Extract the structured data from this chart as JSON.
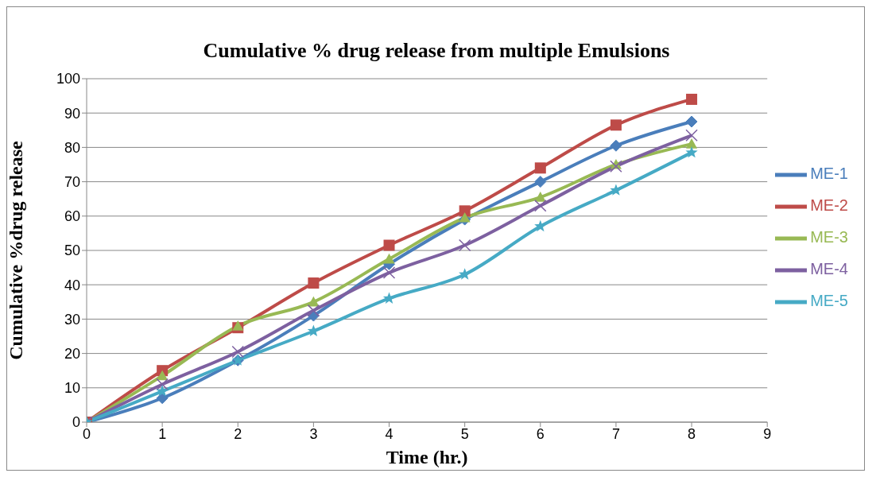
{
  "chart_data": {
    "type": "line",
    "title": "Cumulative % drug release from multiple Emulsions",
    "xlabel": "Time (hr.)",
    "ylabel": "Cumulative %drug release",
    "x": [
      0,
      1,
      2,
      3,
      4,
      5,
      6,
      7,
      8
    ],
    "series": [
      {
        "name": "ME-1",
        "color": "#4a7ebb",
        "marker": "diamond",
        "values": [
          0,
          7,
          18,
          31,
          46,
          59,
          70,
          80.5,
          87.5
        ]
      },
      {
        "name": "ME-2",
        "color": "#be4b48",
        "marker": "square",
        "values": [
          0,
          15,
          27.5,
          40.5,
          51.5,
          61.5,
          74,
          86.5,
          94
        ]
      },
      {
        "name": "ME-3",
        "color": "#98b954",
        "marker": "triangle",
        "values": [
          0,
          13.5,
          28,
          35,
          47.5,
          59.5,
          65.5,
          75,
          81
        ]
      },
      {
        "name": "ME-4",
        "color": "#7d60a0",
        "marker": "cross",
        "values": [
          0,
          11,
          20.5,
          32.5,
          43.5,
          51.5,
          63,
          74.5,
          83.5
        ]
      },
      {
        "name": "ME-5",
        "color": "#46aac5",
        "marker": "star",
        "values": [
          0,
          9,
          18,
          26.5,
          36,
          43,
          57,
          67.5,
          78.5
        ]
      }
    ],
    "xlim": [
      0,
      9
    ],
    "xticks": [
      0,
      1,
      2,
      3,
      4,
      5,
      6,
      7,
      8,
      9
    ],
    "ylim": [
      0,
      100
    ],
    "yticks": [
      0,
      10,
      20,
      30,
      40,
      50,
      60,
      70,
      80,
      90,
      100
    ],
    "grid": "y",
    "legend": "right",
    "line_style": "solid"
  }
}
